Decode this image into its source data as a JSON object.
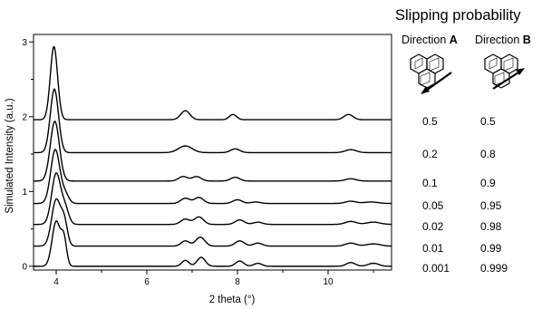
{
  "chart_data": {
    "type": "line",
    "xlabel": "2 theta (°)",
    "ylabel": "Simulated Intensity (a.u.)",
    "xlim": [
      3.5,
      11.4
    ],
    "ylim": [
      -0.05,
      3.1
    ],
    "x_ticks": [
      4,
      6,
      8,
      10
    ],
    "x_tick_labels": [
      "4",
      "6",
      "8",
      "10"
    ],
    "y_ticks": [
      0,
      1,
      2,
      3
    ],
    "y_tick_labels": [
      "0",
      "1",
      "2",
      "3"
    ],
    "legend_panel": {
      "title": "Slipping probability",
      "direction_a_prefix": "Direction ",
      "direction_a_letter": "A",
      "direction_b_prefix": "Direction ",
      "direction_b_letter": "B",
      "icon_a": "hexagon-slip-direction-a-icon",
      "icon_b": "hexagon-slip-direction-b-icon"
    },
    "series": [
      {
        "prob_a": "0.5",
        "prob_b": "0.5",
        "baseline": 1.96,
        "peaks": [
          [
            3.95,
            0.98,
            0.08
          ],
          [
            6.85,
            0.12,
            0.1
          ],
          [
            7.9,
            0.07,
            0.08
          ],
          [
            10.45,
            0.07,
            0.1
          ]
        ]
      },
      {
        "prob_a": "0.2",
        "prob_b": "0.8",
        "baseline": 1.52,
        "peaks": [
          [
            3.96,
            0.85,
            0.09
          ],
          [
            6.85,
            0.09,
            0.15
          ],
          [
            7.95,
            0.05,
            0.1
          ],
          [
            10.5,
            0.04,
            0.12
          ]
        ]
      },
      {
        "prob_a": "0.1",
        "prob_b": "0.9",
        "baseline": 1.14,
        "peaks": [
          [
            3.97,
            0.8,
            0.1
          ],
          [
            6.8,
            0.06,
            0.1
          ],
          [
            7.1,
            0.06,
            0.1
          ],
          [
            7.95,
            0.05,
            0.1
          ],
          [
            10.5,
            0.03,
            0.12
          ]
        ]
      },
      {
        "prob_a": "0.05",
        "prob_b": "0.95",
        "baseline": 0.84,
        "peaks": [
          [
            3.98,
            0.72,
            0.1
          ],
          [
            4.2,
            0.12,
            0.08
          ],
          [
            6.85,
            0.07,
            0.1
          ],
          [
            7.15,
            0.08,
            0.1
          ],
          [
            8.0,
            0.05,
            0.1
          ],
          [
            8.4,
            0.02,
            0.1
          ],
          [
            10.5,
            0.03,
            0.12
          ],
          [
            10.95,
            0.02,
            0.15
          ]
        ]
      },
      {
        "prob_a": "0.02",
        "prob_b": "0.98",
        "baseline": 0.56,
        "peaks": [
          [
            4.0,
            0.68,
            0.1
          ],
          [
            4.2,
            0.2,
            0.08
          ],
          [
            6.85,
            0.07,
            0.1
          ],
          [
            7.15,
            0.1,
            0.1
          ],
          [
            8.05,
            0.06,
            0.1
          ],
          [
            8.45,
            0.03,
            0.1
          ],
          [
            10.5,
            0.04,
            0.12
          ],
          [
            11.0,
            0.03,
            0.15
          ]
        ]
      },
      {
        "prob_a": "0.01",
        "prob_b": "0.99",
        "baseline": 0.27,
        "peaks": [
          [
            4.0,
            0.62,
            0.1
          ],
          [
            4.18,
            0.3,
            0.07
          ],
          [
            6.85,
            0.07,
            0.09
          ],
          [
            7.18,
            0.12,
            0.1
          ],
          [
            8.05,
            0.07,
            0.1
          ],
          [
            8.45,
            0.04,
            0.1
          ],
          [
            10.5,
            0.04,
            0.12
          ],
          [
            11.0,
            0.03,
            0.15
          ]
        ]
      },
      {
        "prob_a": "0.001",
        "prob_b": "0.999",
        "baseline": 0.0,
        "peaks": [
          [
            4.0,
            0.6,
            0.09
          ],
          [
            4.17,
            0.35,
            0.06
          ],
          [
            6.85,
            0.08,
            0.08
          ],
          [
            7.2,
            0.12,
            0.09
          ],
          [
            8.05,
            0.07,
            0.09
          ],
          [
            8.45,
            0.04,
            0.09
          ],
          [
            10.5,
            0.05,
            0.1
          ],
          [
            11.0,
            0.04,
            0.12
          ]
        ]
      }
    ]
  }
}
